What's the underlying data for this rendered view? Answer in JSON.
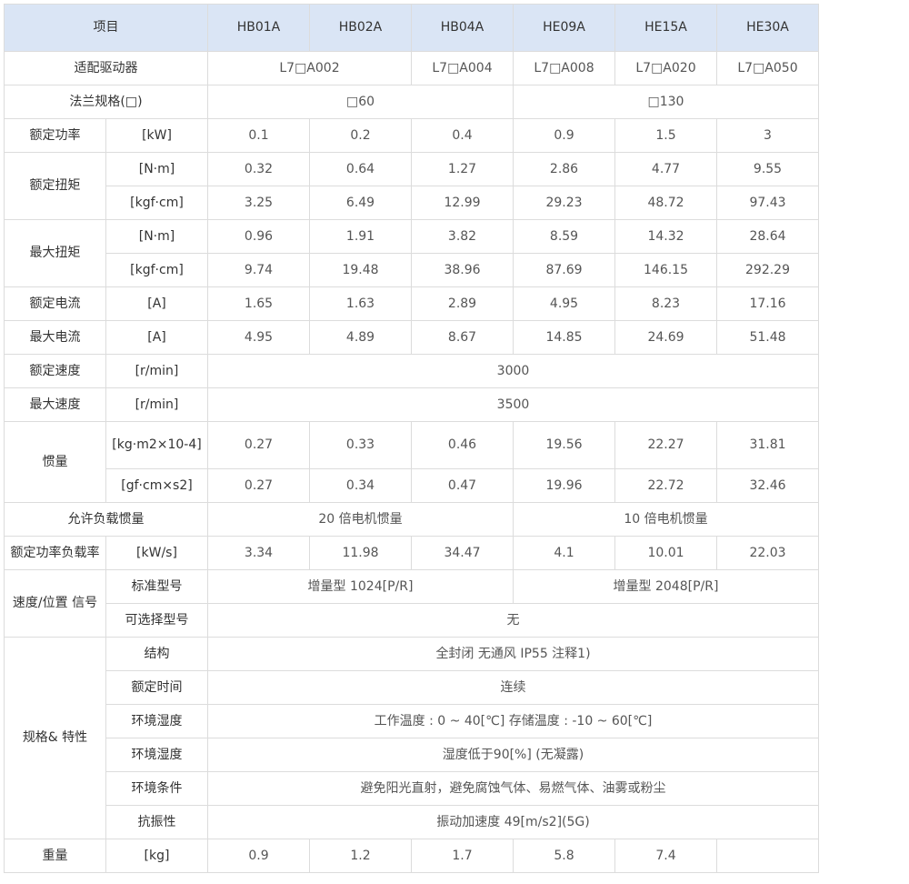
{
  "header": {
    "item": "项目",
    "models": [
      "HB01A",
      "HB02A",
      "HB04A",
      "HE09A",
      "HE15A",
      "HE30A"
    ]
  },
  "drive": {
    "label": "适配驱动器",
    "values": [
      "L7□A002",
      "L7□A004",
      "L7□A008",
      "L7□A020",
      "L7□A050"
    ]
  },
  "flange": {
    "label": "法兰规格(□)",
    "values": [
      "□60",
      "□130"
    ]
  },
  "rated_power": {
    "label": "额定功率",
    "unit": "[kW]",
    "values": [
      "0.1",
      "0.2",
      "0.4",
      "0.9",
      "1.5",
      "3"
    ]
  },
  "rated_torque": {
    "label": "额定扭矩",
    "rows": [
      {
        "unit": "[N·m]",
        "values": [
          "0.32",
          "0.64",
          "1.27",
          "2.86",
          "4.77",
          "9.55"
        ]
      },
      {
        "unit": "[kgf·cm]",
        "values": [
          "3.25",
          "6.49",
          "12.99",
          "29.23",
          "48.72",
          "97.43"
        ]
      }
    ]
  },
  "max_torque": {
    "label": "最大扭矩",
    "rows": [
      {
        "unit": "[N·m]",
        "values": [
          "0.96",
          "1.91",
          "3.82",
          "8.59",
          "14.32",
          "28.64"
        ]
      },
      {
        "unit": "[kgf·cm]",
        "values": [
          "9.74",
          "19.48",
          "38.96",
          "87.69",
          "146.15",
          "292.29"
        ]
      }
    ]
  },
  "rated_current": {
    "label": "额定电流",
    "unit": "[A]",
    "values": [
      "1.65",
      "1.63",
      "2.89",
      "4.95",
      "8.23",
      "17.16"
    ]
  },
  "max_current": {
    "label": "最大电流",
    "unit": "[A]",
    "values": [
      "4.95",
      "4.89",
      "8.67",
      "14.85",
      "24.69",
      "51.48"
    ]
  },
  "rated_speed": {
    "label": "额定速度",
    "unit": "[r/min]",
    "value": "3000"
  },
  "max_speed": {
    "label": "最大速度",
    "unit": "[r/min]",
    "value": "3500"
  },
  "inertia": {
    "label": "惯量",
    "rows": [
      {
        "unit": "[kg·m2×10-4]",
        "values": [
          "0.27",
          "0.33",
          "0.46",
          "19.56",
          "22.27",
          "31.81"
        ]
      },
      {
        "unit": "[gf·cm×s2]",
        "values": [
          "0.27",
          "0.34",
          "0.47",
          "19.96",
          "22.72",
          "32.46"
        ]
      }
    ]
  },
  "load_inertia": {
    "label": "允许负载惯量",
    "values": [
      "20 倍电机惯量",
      "10 倍电机惯量"
    ]
  },
  "power_rate": {
    "label": "额定功率负载率",
    "unit": "[kW/s]",
    "values": [
      "3.34",
      "11.98",
      "34.47",
      "4.1",
      "10.01",
      "22.03"
    ]
  },
  "signal": {
    "label": "速度/位置 信号",
    "standard": {
      "label": "标准型号",
      "values": [
        "增量型 1024[P/R]",
        "增量型 2048[P/R]"
      ]
    },
    "optional": {
      "label": "可选择型号",
      "value": "无"
    }
  },
  "spec": {
    "label": "规格& 特性",
    "rows": [
      {
        "label": "结构",
        "value": "全封闭 无通风  IP55 注释1)"
      },
      {
        "label": "额定时间",
        "value": "连续"
      },
      {
        "label": "环境湿度",
        "value": "工作温度 : 0 ~ 40[℃]  存储温度 : -10 ~ 60[℃]"
      },
      {
        "label": "环境湿度",
        "value": "湿度低于90[%] (无凝露)"
      },
      {
        "label": "环境条件",
        "value": "避免阳光直射，避免腐蚀气体、易燃气体、油雾或粉尘"
      },
      {
        "label": "抗振性",
        "value": "振动加速度 49[m/s2](5G)"
      }
    ]
  },
  "weight": {
    "label": "重量",
    "unit": "[kg]",
    "values": [
      "0.9",
      "1.2",
      "1.7",
      "5.8",
      "7.4",
      ""
    ]
  },
  "colors": {
    "header_bg": "#dae5f5",
    "border": "#dcdcdc"
  }
}
